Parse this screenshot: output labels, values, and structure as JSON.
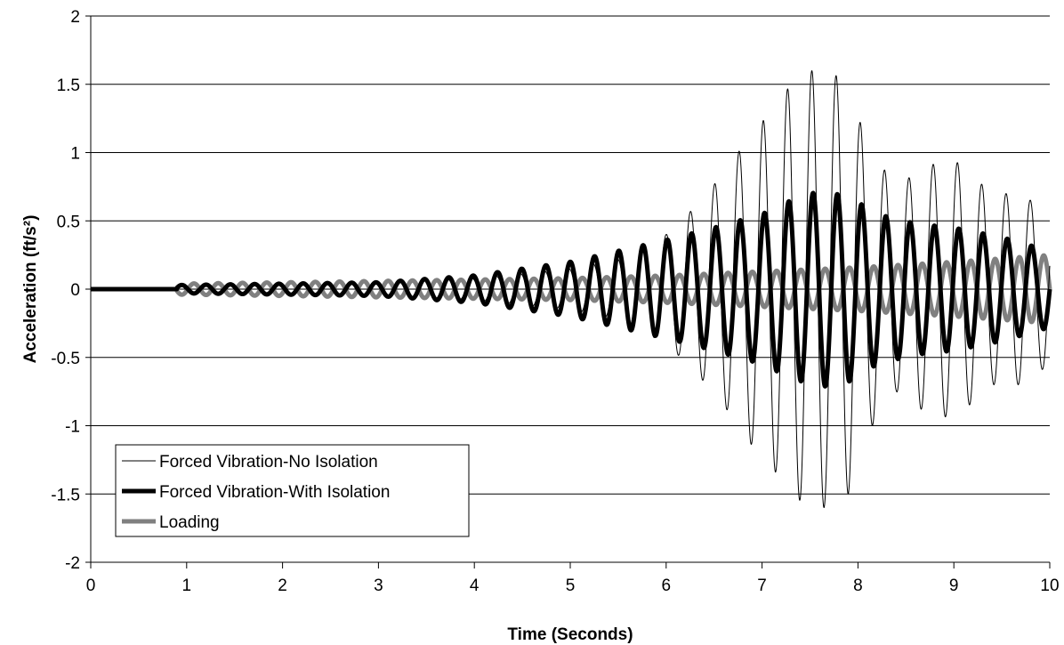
{
  "chart_data": {
    "type": "line",
    "xlabel": "Time (Seconds)",
    "ylabel": "Acceleration (ft/s²)",
    "xlim": [
      0,
      10
    ],
    "ylim": [
      -2,
      2
    ],
    "x_ticks": [
      "0",
      "1",
      "2",
      "3",
      "4",
      "5",
      "6",
      "7",
      "8",
      "9",
      "10"
    ],
    "y_ticks": [
      "2",
      "1.5",
      "1",
      "0.5",
      "0",
      "-0.5",
      "-1",
      "-1.5",
      "-2"
    ],
    "grid": "horizontal",
    "legend_position": "bottom-left",
    "series": [
      {
        "name": "Forced Vibration-No Isolation",
        "color": "#000000",
        "style": "thin",
        "envelope": {
          "t": [
            0,
            0.9,
            1.5,
            3,
            4,
            5,
            5.5,
            6,
            6.3,
            6.6,
            6.9,
            7.1,
            7.3,
            7.5,
            7.7,
            7.9,
            8.1,
            8.4,
            8.7,
            9.0,
            9.4,
            9.7,
            10
          ],
          "a": [
            0,
            0.02,
            0.04,
            0.05,
            0.08,
            0.15,
            0.22,
            0.4,
            0.6,
            0.85,
            1.15,
            1.3,
            1.5,
            1.6,
            1.6,
            1.5,
            1.05,
            0.75,
            0.9,
            0.95,
            0.7,
            0.7,
            0.55
          ]
        },
        "frequency_hz": 3.95,
        "phase_deg": 198
      },
      {
        "name": "Forced Vibration-With Isolation",
        "color": "#000000",
        "style": "thick",
        "envelope": {
          "t": [
            0,
            0.9,
            2,
            3,
            4,
            5,
            5.5,
            6,
            6.5,
            7,
            7.3,
            7.6,
            7.9,
            8.2,
            8.6,
            9.0,
            9.5,
            10
          ],
          "a": [
            0,
            0.03,
            0.04,
            0.05,
            0.1,
            0.2,
            0.28,
            0.36,
            0.45,
            0.55,
            0.65,
            0.72,
            0.68,
            0.55,
            0.48,
            0.45,
            0.38,
            0.28
          ]
        },
        "frequency_hz": 3.95,
        "phase_deg": 180
      },
      {
        "name": "Loading",
        "color": "#808080",
        "style": "thick",
        "envelope": {
          "t": [
            0,
            0.9,
            2,
            4,
            5,
            6,
            7,
            8,
            9,
            10
          ],
          "a": [
            0,
            0.04,
            0.05,
            0.07,
            0.08,
            0.1,
            0.13,
            0.16,
            0.2,
            0.25
          ]
        },
        "frequency_hz": 3.95,
        "phase_deg": 0
      }
    ]
  }
}
